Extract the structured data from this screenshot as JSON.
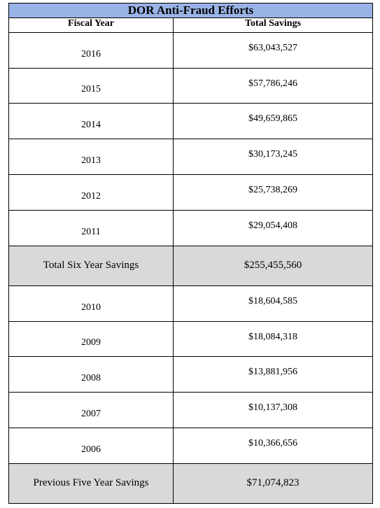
{
  "title": "DOR Anti-Fraud Efforts",
  "headers": {
    "year": "Fiscal Year",
    "savings": "Total Savings"
  },
  "group1": [
    {
      "year": "2016",
      "savings": "$63,043,527"
    },
    {
      "year": "2015",
      "savings": "$57,786,246"
    },
    {
      "year": "2014",
      "savings": "$49,659,865"
    },
    {
      "year": "2013",
      "savings": "$30,173,245"
    },
    {
      "year": "2012",
      "savings": "$25,738,269"
    },
    {
      "year": "2011",
      "savings": "$29,054,408"
    }
  ],
  "total1": {
    "label": "Total Six Year Savings",
    "value": "$255,455,560"
  },
  "group2": [
    {
      "year": "2010",
      "savings": "$18,604,585"
    },
    {
      "year": "2009",
      "savings": "$18,084,318"
    },
    {
      "year": "2008",
      "savings": "$13,881,956"
    },
    {
      "year": "2007",
      "savings": "$10,137,308"
    },
    {
      "year": "2006",
      "savings": "$10,366,656"
    }
  ],
  "total2": {
    "label": "Previous Five Year Savings",
    "value": "$71,074,823"
  },
  "colors": {
    "title_bg": "#9ab3e6",
    "total_bg": "#d9d9d9"
  }
}
